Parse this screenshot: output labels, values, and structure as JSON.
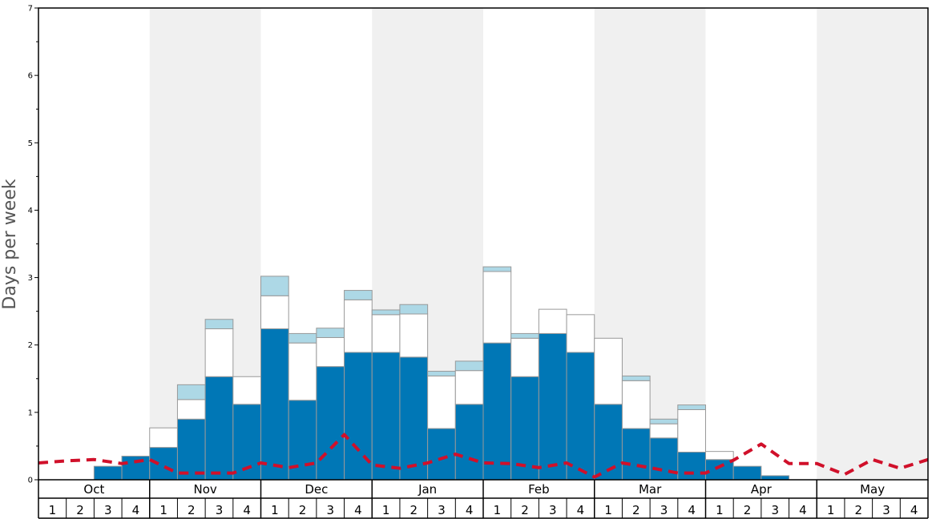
{
  "chart_data": {
    "type": "bar",
    "stacked": true,
    "title": "",
    "xlabel": "",
    "ylabel": "Days per week",
    "ylim": [
      0,
      7
    ],
    "yticks": [
      "0",
      "1",
      "2",
      "3",
      "4",
      "5",
      "6",
      "7"
    ],
    "months": [
      "Oct",
      "Nov",
      "Dec",
      "Jan",
      "Feb",
      "Mar",
      "Apr",
      "May"
    ],
    "weeks": [
      "1",
      "2",
      "3",
      "4"
    ],
    "shaded_months": [
      "Nov",
      "Jan",
      "Mar",
      "May"
    ],
    "colors": {
      "base": "#0077b6",
      "middle": "#ffffff",
      "top": "#add8e6",
      "bar_edge": "#999999",
      "line": "#d0102a",
      "shade": "#f0f0f0"
    },
    "series": [
      {
        "key": "base",
        "values": [
          0,
          0,
          0.2,
          0.35,
          0.48,
          0.9,
          1.53,
          1.12,
          2.24,
          1.18,
          1.68,
          1.89,
          1.89,
          1.82,
          0.76,
          1.12,
          2.03,
          1.53,
          2.17,
          1.89,
          1.12,
          0.76,
          0.62,
          0.41,
          0.3,
          0.2,
          0.06,
          0,
          0,
          0,
          0,
          0
        ]
      },
      {
        "key": "middle",
        "values": [
          0,
          0,
          0,
          0,
          0.29,
          0.29,
          0.71,
          0.41,
          0.49,
          0.85,
          0.43,
          0.78,
          0.56,
          0.64,
          0.78,
          0.5,
          1.06,
          0.57,
          0.36,
          0.56,
          0.98,
          0.71,
          0.21,
          0.63,
          0.12,
          0,
          0,
          0,
          0,
          0,
          0,
          0
        ]
      },
      {
        "key": "top",
        "values": [
          0,
          0,
          0,
          0,
          0,
          0.22,
          0.14,
          0,
          0.29,
          0.14,
          0.14,
          0.14,
          0.07,
          0.14,
          0.07,
          0.14,
          0.07,
          0.07,
          0,
          0,
          0,
          0.07,
          0.07,
          0.07,
          0,
          0,
          0,
          0,
          0,
          0,
          0,
          0
        ]
      }
    ],
    "line": {
      "style": "dashed",
      "values": [
        0.25,
        0.28,
        0.3,
        0.24,
        0.3,
        0.1,
        0.1,
        0.1,
        0.25,
        0.18,
        0.25,
        0.67,
        0.22,
        0.17,
        0.25,
        0.38,
        0.25,
        0.24,
        0.18,
        0.25,
        0.04,
        0.25,
        0.18,
        0.1,
        0.1,
        0.29,
        0.53,
        0.24,
        0.24,
        0.08,
        0.3,
        0.17,
        0.3
      ]
    }
  }
}
